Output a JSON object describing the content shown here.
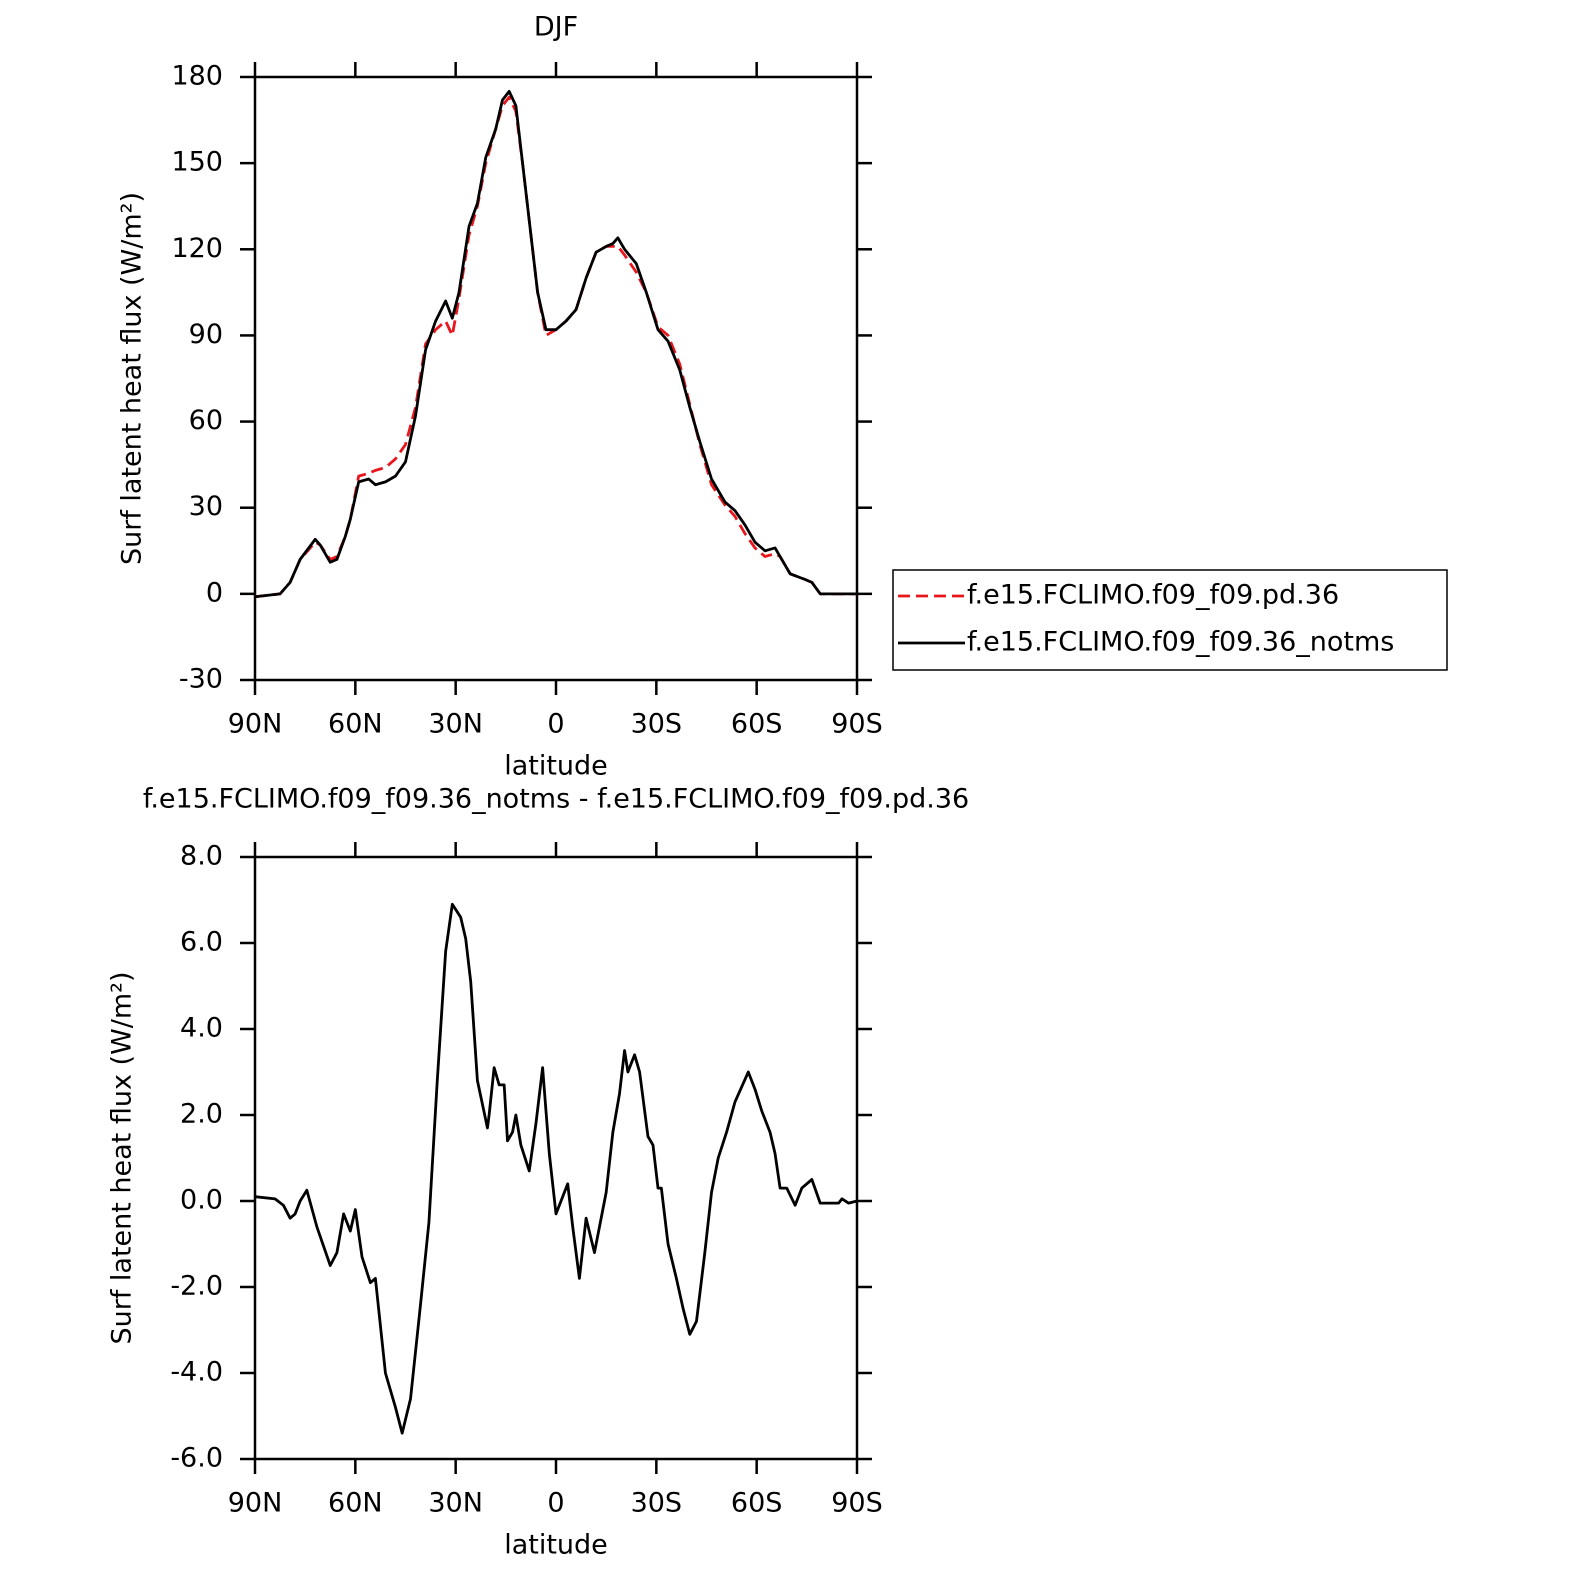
{
  "chart_data": [
    {
      "type": "line",
      "title": "DJF",
      "x_label": "latitude",
      "y_label": "Surf latent heat flux (W/m²)",
      "x": [
        90,
        82.5,
        79.5,
        76.5,
        72,
        70.5,
        67.5,
        65.5,
        63,
        61.5,
        59,
        56,
        54,
        51,
        48,
        45,
        42,
        39,
        36,
        33,
        31,
        29,
        26,
        23.5,
        21,
        18,
        16,
        14,
        12,
        10,
        8,
        5.5,
        3,
        0,
        -3,
        -6,
        -9,
        -12,
        -15,
        -17,
        -18.5,
        -20.5,
        -24,
        -27,
        -30.5,
        -33.5,
        -37,
        -40,
        -43,
        -46.5,
        -50.5,
        -53.5,
        -56.5,
        -59.5,
        -62.5,
        -65.5,
        -67,
        -70,
        -74.5,
        -76.5,
        -79,
        -90
      ],
      "series": [
        {
          "name": "f.e15.FCLIMO.f09_f09.pd.36",
          "color": "#e8161d",
          "line_style": "dashed",
          "values": [
            -1,
            0,
            4,
            12,
            18,
            17,
            12,
            13,
            20,
            26,
            41,
            42,
            43,
            44,
            47,
            52,
            65,
            87,
            92,
            95,
            90,
            103,
            125,
            135,
            150,
            162,
            170,
            173,
            168,
            150,
            130,
            105,
            90,
            92,
            95,
            99,
            110,
            119,
            121,
            121,
            121,
            118,
            112,
            105,
            93,
            90,
            80,
            66,
            52,
            38,
            31,
            27,
            21,
            16,
            13,
            14,
            13,
            7,
            5,
            4,
            0,
            0
          ]
        },
        {
          "name": "f.e15.FCLIMO.f09_f09.36_notms",
          "color": "#000000",
          "line_style": "solid",
          "values": [
            -1,
            0,
            4,
            12,
            19,
            17,
            11,
            12,
            20,
            26,
            39,
            40,
            38,
            39,
            41,
            46,
            62,
            85,
            95,
            102,
            96,
            105,
            128,
            136,
            152,
            162,
            172,
            175,
            170,
            150,
            130,
            105,
            92,
            92,
            95,
            99,
            110,
            119,
            121,
            122,
            124,
            120,
            115,
            105,
            92,
            88,
            78,
            65,
            53,
            40,
            32,
            29,
            24,
            18,
            15,
            16,
            13,
            7,
            5,
            4,
            0,
            0
          ]
        }
      ],
      "xlim": [
        90,
        -90
      ],
      "xticks": [
        {
          "value": 90,
          "label": "90N"
        },
        {
          "value": 60,
          "label": "60N"
        },
        {
          "value": 30,
          "label": "30N"
        },
        0,
        {
          "value": -30,
          "label": "30S"
        },
        {
          "value": -60,
          "label": "60S"
        },
        {
          "value": -90,
          "label": "90S"
        }
      ],
      "ylim": [
        -30,
        180
      ],
      "yticks": [
        -30,
        0,
        30,
        60,
        90,
        120,
        150,
        180
      ],
      "legend": "right"
    },
    {
      "type": "line",
      "title": "f.e15.FCLIMO.f09_f09.36_notms - f.e15.FCLIMO.f09_f09.pd.36",
      "x_label": "latitude",
      "y_label": "Surf latent heat flux (W/m²)",
      "x": [
        90,
        84,
        81.5,
        79.5,
        78,
        76.5,
        74.5,
        71.5,
        67.5,
        65.5,
        63.5,
        61.5,
        60,
        58,
        55.5,
        54,
        51,
        48,
        46,
        43.5,
        40.5,
        38,
        35.5,
        33,
        31,
        28.5,
        27,
        25.5,
        23.5,
        20.5,
        20,
        18.5,
        17,
        15.5,
        14.5,
        13,
        12,
        10.5,
        8,
        6,
        4,
        2,
        0,
        -2,
        -3.5,
        -5,
        -7,
        -9,
        -11.5,
        -13,
        -15,
        -17,
        -19,
        -20.5,
        -21.5,
        -23.5,
        -25,
        -27.5,
        -29,
        -30.5,
        -31.5,
        -33.5,
        -36,
        -38,
        -40,
        -42,
        -44.5,
        -46.5,
        -48.5,
        -51,
        -53.5,
        -57.5,
        -59.5,
        -61.5,
        -64,
        -65.5,
        -67,
        -69,
        -71.5,
        -73.5,
        -76.5,
        -79,
        -84.5,
        -85.5,
        -87.5,
        -90
      ],
      "color": "#000000",
      "values": [
        0.1,
        0.05,
        -0.1,
        -0.4,
        -0.3,
        0,
        0.25,
        -0.6,
        -1.5,
        -1.2,
        -0.3,
        -0.7,
        -0.2,
        -1.3,
        -1.9,
        -1.8,
        -4.0,
        -4.8,
        -5.4,
        -4.6,
        -2.4,
        -0.5,
        2.8,
        5.8,
        6.9,
        6.6,
        6.1,
        5.1,
        2.8,
        1.7,
        2.0,
        3.1,
        2.7,
        2.7,
        1.4,
        1.6,
        2.0,
        1.3,
        0.7,
        1.8,
        3.1,
        1.1,
        -0.3,
        0.1,
        0.4,
        -0.6,
        -1.8,
        -0.4,
        -1.2,
        -0.6,
        0.2,
        1.6,
        2.5,
        3.5,
        3.0,
        3.4,
        3.0,
        1.5,
        1.3,
        0.3,
        0.3,
        -1.0,
        -1.8,
        -2.5,
        -3.1,
        -2.8,
        -1.2,
        0.2,
        1.0,
        1.6,
        2.3,
        3.0,
        2.6,
        2.1,
        1.6,
        1.1,
        0.3,
        0.3,
        -0.1,
        0.3,
        0.5,
        -0.05,
        -0.05,
        0.05,
        -0.05,
        0
      ],
      "xlim": [
        90,
        -90
      ],
      "xticks": [
        {
          "value": 90,
          "label": "90N"
        },
        {
          "value": 60,
          "label": "60N"
        },
        {
          "value": 30,
          "label": "30N"
        },
        0,
        {
          "value": -30,
          "label": "30S"
        },
        {
          "value": -60,
          "label": "60S"
        },
        {
          "value": -90,
          "label": "90S"
        }
      ],
      "ylim": [
        -6,
        8
      ],
      "yticks": [
        {
          "value": -6,
          "label": "-6.0"
        },
        {
          "value": -4,
          "label": "-4.0"
        },
        {
          "value": -2,
          "label": "-2.0"
        },
        {
          "value": 0,
          "label": "0.0"
        },
        {
          "value": 2,
          "label": "2.0"
        },
        {
          "value": 4,
          "label": "4.0"
        },
        {
          "value": 6,
          "label": "6.0"
        },
        {
          "value": 8,
          "label": "8.0"
        }
      ]
    }
  ]
}
